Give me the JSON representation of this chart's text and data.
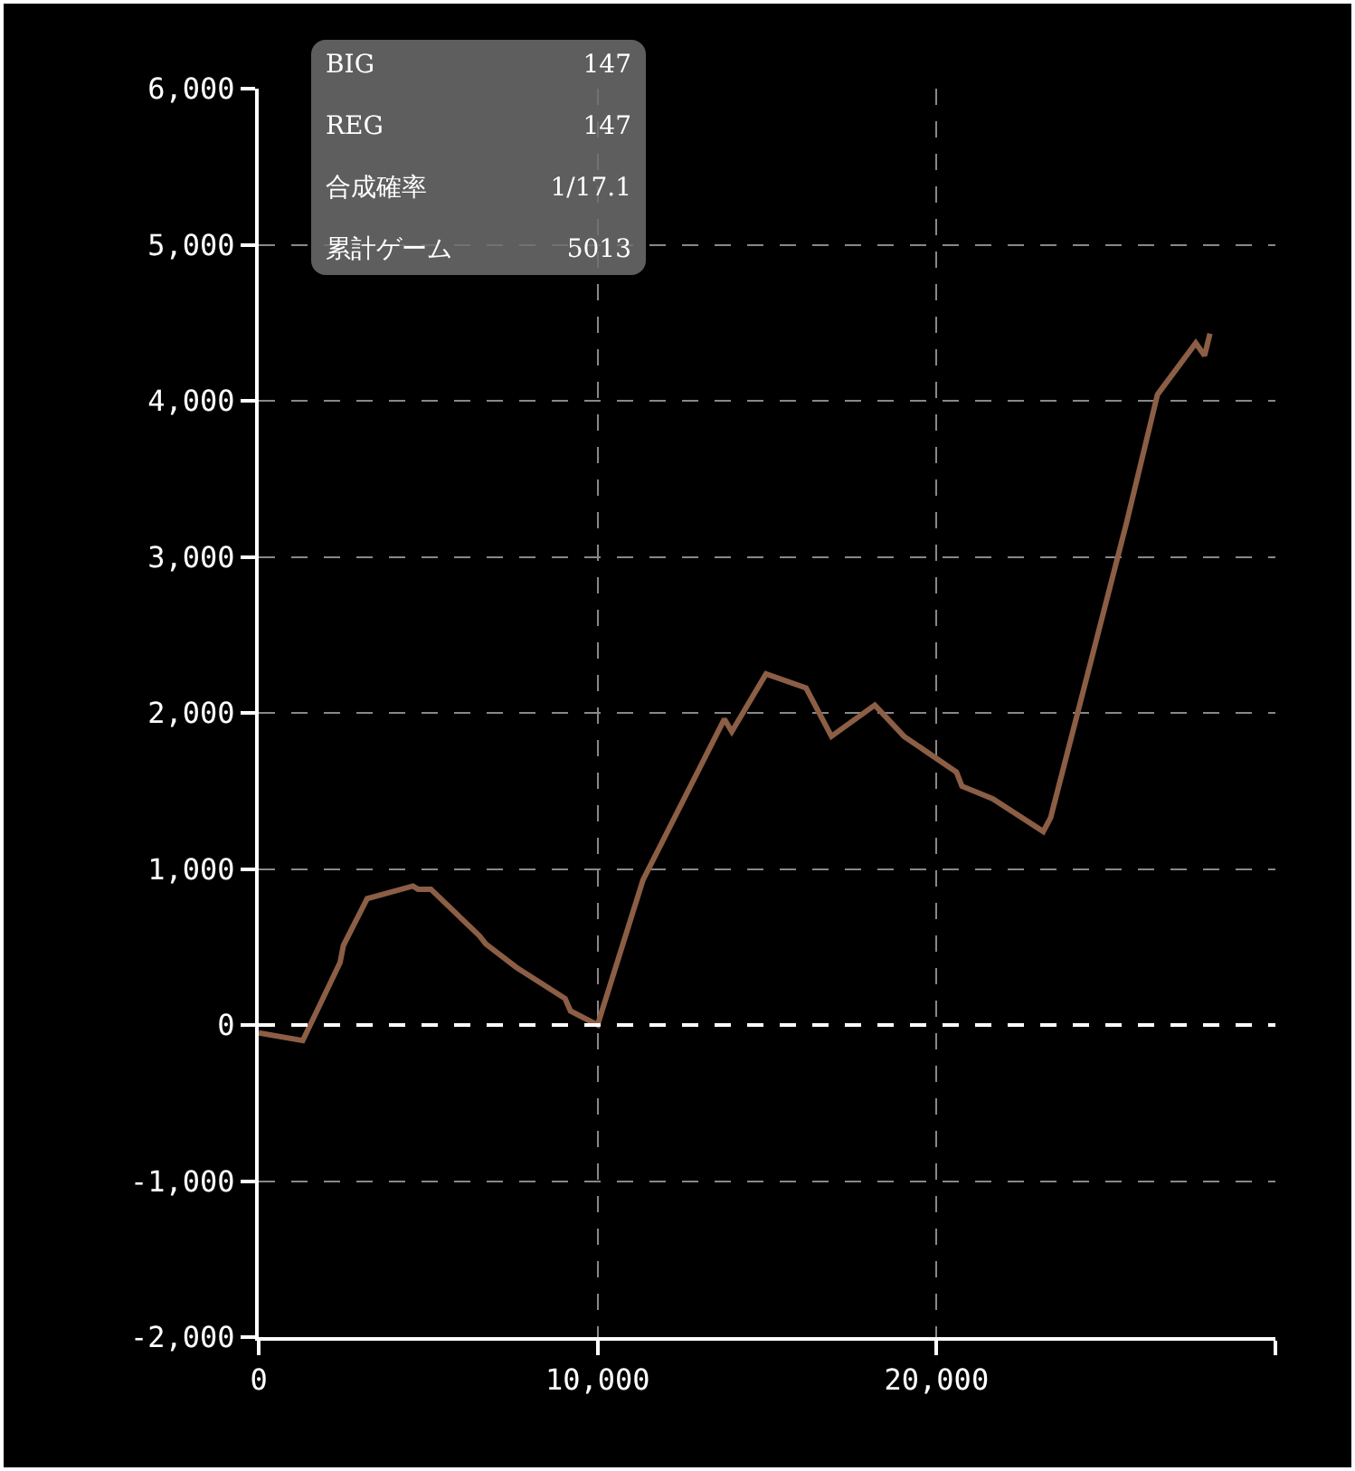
{
  "chart_data": {
    "type": "line",
    "x": [
      0,
      1300,
      2400,
      2500,
      3200,
      4550,
      4700,
      5080,
      6520,
      6700,
      7600,
      9040,
      9200,
      10000,
      11340,
      13740,
      13960,
      14970,
      16150,
      16900,
      18180,
      19040,
      20590,
      20750,
      21660,
      23150,
      23370,
      25610,
      26520,
      27650,
      27910,
      28070
    ],
    "series": [
      {
        "color": "#8b5e45",
        "values": [
          -50,
          -100,
          400,
          510,
          810,
          890,
          870,
          870,
          570,
          520,
          370,
          170,
          90,
          0,
          930,
          1960,
          1880,
          2250,
          2160,
          1850,
          2050,
          1850,
          1620,
          1530,
          1450,
          1240,
          1330,
          3220,
          4040,
          4370,
          4290,
          4430
        ]
      }
    ],
    "xlim": [
      0,
      30000
    ],
    "xticks": [
      0,
      {
        "value": 10000,
        "label": "10,000"
      },
      {
        "value": 20000,
        "label": "20,000"
      },
      {
        "value": 30000,
        "label": null
      }
    ],
    "ylim": [
      -2000,
      6000
    ],
    "yticks": [
      {
        "value": -2000,
        "label": "-2,000"
      },
      {
        "value": -1000,
        "label": "-1,000"
      },
      0,
      {
        "value": 1000,
        "label": "1,000"
      },
      {
        "value": 2000,
        "label": "2,000"
      },
      {
        "value": 3000,
        "label": "3,000"
      },
      {
        "value": 4000,
        "label": "4,000"
      },
      {
        "value": 5000,
        "label": "5,000"
      },
      {
        "value": 6000,
        "label": "6,000"
      }
    ],
    "grid": true,
    "line_style": "solid",
    "ref_lines": [
      {
        "axis": "y",
        "value": 0,
        "color": "#ffffff",
        "line_style": "dashed"
      }
    ],
    "annotations": [
      "BIG",
      "147",
      "REG",
      "147",
      "合成確率",
      "1/17.1",
      "累計ゲーム",
      "5013"
    ]
  }
}
